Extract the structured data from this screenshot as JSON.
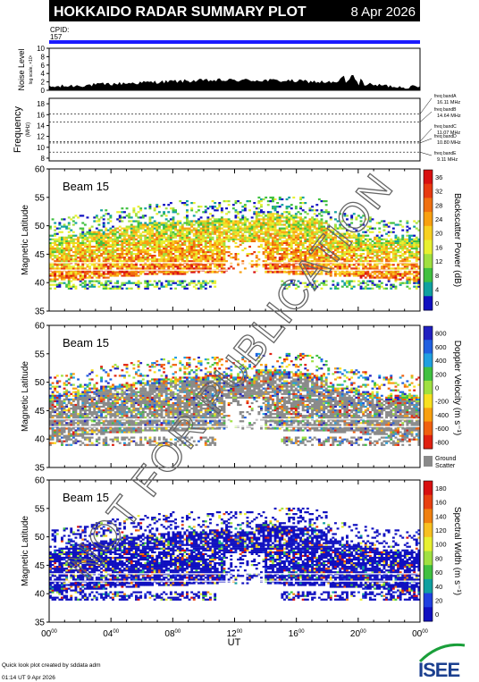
{
  "header": {
    "title": "HOKKAIDO RADAR SUMMARY PLOT",
    "date": "8 Apr 2026",
    "cpid_label": "CPID:",
    "cpid_value": "157",
    "bar_color": "#1a1aff"
  },
  "noise_panel": {
    "ylabel": "Noise Level",
    "ylabel_sub": "log scale, ×10¹",
    "ylim": [
      0,
      10
    ],
    "ticks": [
      "0",
      "2",
      "4",
      "6",
      "8",
      "10"
    ]
  },
  "freq_panel": {
    "ylabel": "Frequency",
    "ylabel_sub": "(MHz)",
    "ylim": [
      7.5,
      19
    ],
    "ticks": [
      "8",
      "10",
      "12",
      "14",
      "16",
      "18"
    ],
    "bands": [
      {
        "label": "freq bandA",
        "value": "16.11 MHz",
        "mhz": 16.11
      },
      {
        "label": "freq bandB",
        "value": "14.64 MHz",
        "mhz": 14.64
      },
      {
        "label": "freq bandC",
        "value": "11.07 MHz",
        "mhz": 11.07
      },
      {
        "label": "freq bandD",
        "value": "10.80 MHz",
        "mhz": 10.8
      },
      {
        "label": "freq bandE",
        "value": "9.11 MHz",
        "mhz": 9.11
      }
    ]
  },
  "panels": [
    {
      "beam": "Beam 15",
      "ylabel": "Magnetic Latitude",
      "colorbar_title": "Backscatter Power (dB)",
      "colorbar_ticks": [
        "36",
        "32",
        "28",
        "24",
        "20",
        "16",
        "12",
        "8",
        "4",
        "0"
      ],
      "colorbar_colors": [
        "#d81010",
        "#e83a10",
        "#f07010",
        "#f8a010",
        "#f8d020",
        "#e8f030",
        "#a0e040",
        "#40c040",
        "#10a0a0",
        "#1010c0"
      ]
    },
    {
      "beam": "Beam 15",
      "ylabel": "Magnetic Latitude",
      "colorbar_title": "Doppler Velocity (m s⁻¹)",
      "colorbar_ticks": [
        "800",
        "600",
        "400",
        "200",
        "0",
        "-200",
        "-400",
        "-600",
        "-800"
      ],
      "colorbar_colors": [
        "#2020c0",
        "#2060e0",
        "#20a0e0",
        "#40c040",
        "#a0e040",
        "#f8e020",
        "#f8a010",
        "#f06010",
        "#e02010"
      ],
      "ground_scatter_label": "Ground Scatter"
    },
    {
      "beam": "Beam 15",
      "ylabel": "Magnetic Latitude",
      "colorbar_title": "Spectral Width (m s⁻¹)",
      "colorbar_ticks": [
        "180",
        "160",
        "140",
        "120",
        "100",
        "80",
        "60",
        "40",
        "20",
        "0"
      ],
      "colorbar_colors": [
        "#d81010",
        "#e84010",
        "#f08010",
        "#f8c020",
        "#e8f030",
        "#a0e040",
        "#40c040",
        "#10a0a0",
        "#2040e0",
        "#1010c0"
      ]
    }
  ],
  "lat_axis": {
    "ylim": [
      35,
      60
    ],
    "ticks": [
      "35",
      "40",
      "45",
      "50",
      "55",
      "60"
    ]
  },
  "x_axis": {
    "label": "UT",
    "ticks": [
      {
        "h": "00",
        "m": "00"
      },
      {
        "h": "04",
        "m": "00"
      },
      {
        "h": "08",
        "m": "00"
      },
      {
        "h": "12",
        "m": "00"
      },
      {
        "h": "16",
        "m": "00"
      },
      {
        "h": "20",
        "m": "00"
      },
      {
        "h": "00",
        "m": "00"
      }
    ]
  },
  "footer": {
    "credit": "Quick look plot created by sddata adm",
    "timestamp": "01:14 UT  9 Apr 2026",
    "logo_text": "ISEE"
  },
  "watermark": "NOT FOR PUBLICATION"
}
